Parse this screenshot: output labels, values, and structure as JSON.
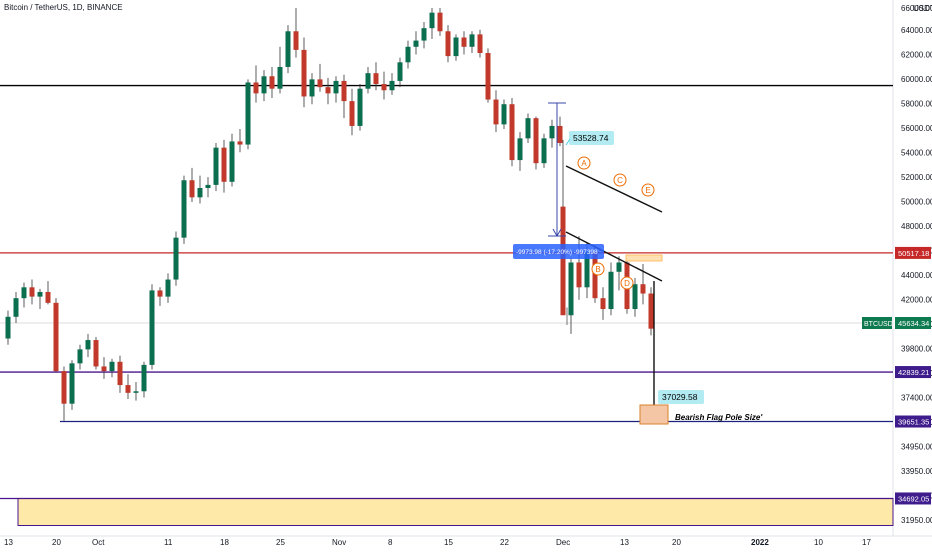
{
  "chart_data": {
    "type": "candlestick",
    "title": "Bitcoin / TetherUS, 1D, BINANCE",
    "y_range": [
      31500,
      66300
    ],
    "x_range": [
      -2,
      75
    ],
    "x_ticks": [
      {
        "label": "13",
        "x": 0
      },
      {
        "label": "20",
        "x": 6
      },
      {
        "label": "Oct",
        "x": 11
      },
      {
        "label": "11",
        "x": 20
      },
      {
        "label": "18",
        "x": 27
      },
      {
        "label": "25",
        "x": 34
      },
      {
        "label": "Nov",
        "x": 41
      },
      {
        "label": "8",
        "x": 48
      },
      {
        "label": "15",
        "x": 55
      },
      {
        "label": "22",
        "x": 62
      },
      {
        "label": "Dec",
        "x": 69
      }
    ],
    "x_ticks_extra": [
      {
        "label": "13",
        "pos": 624
      },
      {
        "label": "20",
        "pos": 676
      },
      {
        "label": "2022",
        "pos": 755
      },
      {
        "label": "10",
        "pos": 818
      },
      {
        "label": "17",
        "pos": 866
      }
    ],
    "y_ticks": [
      "64000.00",
      "62000.00",
      "60000.00",
      "58000.00",
      "56000.00",
      "54000.00",
      "52000.00",
      "50000.00",
      "48000.00",
      "46000.00",
      "44000.00",
      "42000.00",
      "41000.00",
      "39800.00",
      "38600.00",
      "37400.00",
      "36150.00",
      "34950.00",
      "33950.00",
      "32950.00",
      "31950.00"
    ],
    "y_ticks_top": "66000.00",
    "currency": "USDT",
    "levels": [
      {
        "price": 61300,
        "color": "#000000",
        "label": ""
      },
      {
        "price": 50517.18,
        "color": "#c62828",
        "label": "50517.18"
      },
      {
        "price": 42839.21,
        "color": "#4a148c",
        "label": "42839.21"
      },
      {
        "price": 39651.35,
        "color": "#1a237e",
        "label": "39651.35"
      },
      {
        "price": 34692.05,
        "color": "#4a148c",
        "label": "34692.05"
      }
    ],
    "last_price": {
      "label": "BTCUSDT",
      "value": "45634.34"
    },
    "annotations": {
      "peak_label": "53528.74",
      "target_label": "37029.58",
      "target_text": "Bearish Flag Pole Size'",
      "measure_text": "-9973.98 (-17.20%) -997398",
      "points": [
        "A",
        "B",
        "C",
        "D",
        "E"
      ]
    },
    "candles": [
      {
        "o": 45000,
        "h": 46800,
        "l": 44600,
        "c": 46400
      },
      {
        "o": 46400,
        "h": 48000,
        "l": 46000,
        "c": 47600
      },
      {
        "o": 47600,
        "h": 48600,
        "l": 47000,
        "c": 48300
      },
      {
        "o": 48300,
        "h": 48800,
        "l": 47200,
        "c": 47700
      },
      {
        "o": 47700,
        "h": 48200,
        "l": 46900,
        "c": 48000
      },
      {
        "o": 48000,
        "h": 48700,
        "l": 47200,
        "c": 47300
      },
      {
        "o": 47300,
        "h": 47600,
        "l": 42800,
        "c": 42900
      },
      {
        "o": 42900,
        "h": 43200,
        "l": 39700,
        "c": 40800
      },
      {
        "o": 40800,
        "h": 43600,
        "l": 40400,
        "c": 43400
      },
      {
        "o": 43400,
        "h": 44600,
        "l": 43000,
        "c": 44300
      },
      {
        "o": 44300,
        "h": 45300,
        "l": 43800,
        "c": 44900
      },
      {
        "o": 44900,
        "h": 45100,
        "l": 43000,
        "c": 43200
      },
      {
        "o": 43200,
        "h": 43800,
        "l": 42400,
        "c": 42900
      },
      {
        "o": 42900,
        "h": 43700,
        "l": 42500,
        "c": 43500
      },
      {
        "o": 43500,
        "h": 43900,
        "l": 41500,
        "c": 42000
      },
      {
        "o": 42000,
        "h": 42700,
        "l": 41100,
        "c": 41500
      },
      {
        "o": 41500,
        "h": 42200,
        "l": 41000,
        "c": 41600
      },
      {
        "o": 41600,
        "h": 43500,
        "l": 41200,
        "c": 43300
      },
      {
        "o": 43300,
        "h": 48500,
        "l": 43000,
        "c": 48100
      },
      {
        "o": 48100,
        "h": 48300,
        "l": 47100,
        "c": 47700
      },
      {
        "o": 47700,
        "h": 49200,
        "l": 47300,
        "c": 48800
      },
      {
        "o": 48800,
        "h": 51900,
        "l": 48400,
        "c": 51500
      },
      {
        "o": 51500,
        "h": 55500,
        "l": 51100,
        "c": 55200
      },
      {
        "o": 55200,
        "h": 56000,
        "l": 53800,
        "c": 54100
      },
      {
        "o": 54100,
        "h": 55500,
        "l": 53700,
        "c": 54700
      },
      {
        "o": 54700,
        "h": 55400,
        "l": 54100,
        "c": 54900
      },
      {
        "o": 54900,
        "h": 57600,
        "l": 54500,
        "c": 57300
      },
      {
        "o": 57300,
        "h": 57800,
        "l": 54400,
        "c": 55100
      },
      {
        "o": 55100,
        "h": 58200,
        "l": 54800,
        "c": 57700
      },
      {
        "o": 57700,
        "h": 58500,
        "l": 57000,
        "c": 57500
      },
      {
        "o": 57500,
        "h": 61700,
        "l": 57200,
        "c": 61500
      },
      {
        "o": 61500,
        "h": 62600,
        "l": 60200,
        "c": 60800
      },
      {
        "o": 60800,
        "h": 62300,
        "l": 60300,
        "c": 61900
      },
      {
        "o": 61900,
        "h": 62500,
        "l": 60500,
        "c": 61100
      },
      {
        "o": 61100,
        "h": 63800,
        "l": 60800,
        "c": 62500
      },
      {
        "o": 62500,
        "h": 65200,
        "l": 62100,
        "c": 64800
      },
      {
        "o": 64800,
        "h": 66300,
        "l": 63100,
        "c": 63600
      },
      {
        "o": 63600,
        "h": 64400,
        "l": 59900,
        "c": 60600
      },
      {
        "o": 60600,
        "h": 62100,
        "l": 60100,
        "c": 61700
      },
      {
        "o": 61700,
        "h": 62700,
        "l": 60900,
        "c": 61200
      },
      {
        "o": 61200,
        "h": 61800,
        "l": 60100,
        "c": 60800
      },
      {
        "o": 60800,
        "h": 61900,
        "l": 60200,
        "c": 61600
      },
      {
        "o": 61600,
        "h": 62000,
        "l": 59200,
        "c": 60300
      },
      {
        "o": 60300,
        "h": 61100,
        "l": 58100,
        "c": 58700
      },
      {
        "o": 58700,
        "h": 61400,
        "l": 58400,
        "c": 61100
      },
      {
        "o": 61100,
        "h": 62500,
        "l": 60800,
        "c": 62100
      },
      {
        "o": 62100,
        "h": 62800,
        "l": 61000,
        "c": 61400
      },
      {
        "o": 61400,
        "h": 62200,
        "l": 60400,
        "c": 61000
      },
      {
        "o": 61000,
        "h": 62100,
        "l": 60700,
        "c": 61600
      },
      {
        "o": 61600,
        "h": 63100,
        "l": 61200,
        "c": 62800
      },
      {
        "o": 62800,
        "h": 64200,
        "l": 62400,
        "c": 63800
      },
      {
        "o": 63800,
        "h": 64800,
        "l": 63300,
        "c": 64200
      },
      {
        "o": 64200,
        "h": 65400,
        "l": 63700,
        "c": 65000
      },
      {
        "o": 65000,
        "h": 66300,
        "l": 64300,
        "c": 66000
      },
      {
        "o": 66000,
        "h": 66300,
        "l": 64500,
        "c": 64800
      },
      {
        "o": 64800,
        "h": 65200,
        "l": 62800,
        "c": 63200
      },
      {
        "o": 63200,
        "h": 64600,
        "l": 62900,
        "c": 64400
      },
      {
        "o": 64400,
        "h": 64800,
        "l": 63300,
        "c": 63800
      },
      {
        "o": 63800,
        "h": 64800,
        "l": 63400,
        "c": 64600
      },
      {
        "o": 64600,
        "h": 64900,
        "l": 63100,
        "c": 63400
      },
      {
        "o": 63400,
        "h": 63700,
        "l": 60200,
        "c": 60400
      },
      {
        "o": 60400,
        "h": 61000,
        "l": 58300,
        "c": 58800
      },
      {
        "o": 58800,
        "h": 60400,
        "l": 58500,
        "c": 60100
      },
      {
        "o": 60100,
        "h": 60500,
        "l": 56100,
        "c": 56500
      },
      {
        "o": 56500,
        "h": 58300,
        "l": 55800,
        "c": 57900
      },
      {
        "o": 57900,
        "h": 59500,
        "l": 57600,
        "c": 59200
      },
      {
        "o": 59200,
        "h": 59300,
        "l": 55900,
        "c": 56300
      },
      {
        "o": 56300,
        "h": 58200,
        "l": 56000,
        "c": 57900
      },
      {
        "o": 57900,
        "h": 59100,
        "l": 57300,
        "c": 58700
      },
      {
        "o": 58700,
        "h": 59300,
        "l": 57400,
        "c": 57600
      }
    ]
  }
}
